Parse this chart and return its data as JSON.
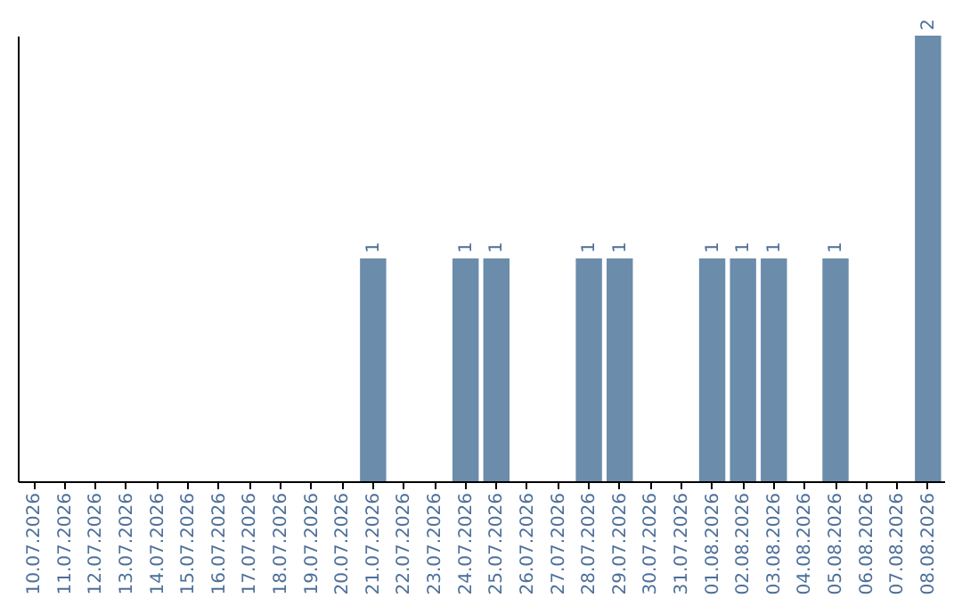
{
  "chart_data": {
    "type": "bar",
    "categories": [
      "10.07.2026",
      "11.07.2026",
      "12.07.2026",
      "13.07.2026",
      "14.07.2026",
      "15.07.2026",
      "16.07.2026",
      "17.07.2026",
      "18.07.2026",
      "19.07.2026",
      "20.07.2026",
      "21.07.2026",
      "22.07.2026",
      "23.07.2026",
      "24.07.2026",
      "25.07.2026",
      "26.07.2026",
      "27.07.2026",
      "28.07.2026",
      "29.07.2026",
      "30.07.2026",
      "31.07.2026",
      "01.08.2026",
      "02.08.2026",
      "03.08.2026",
      "04.08.2026",
      "05.08.2026",
      "06.08.2026",
      "07.08.2026",
      "08.08.2026"
    ],
    "values": [
      0,
      0,
      0,
      0,
      0,
      0,
      0,
      0,
      0,
      0,
      0,
      1,
      0,
      0,
      1,
      1,
      0,
      0,
      1,
      1,
      0,
      0,
      1,
      1,
      1,
      0,
      1,
      0,
      0,
      2
    ],
    "value_labels": [
      null,
      null,
      null,
      null,
      null,
      null,
      null,
      null,
      null,
      null,
      null,
      "1",
      null,
      null,
      "1",
      "1",
      null,
      null,
      "1",
      "1",
      null,
      null,
      "1",
      "1",
      "1",
      null,
      "1",
      null,
      null,
      "2"
    ],
    "color": "#6b8cab",
    "tick_labels": "x",
    "grid": false
  }
}
